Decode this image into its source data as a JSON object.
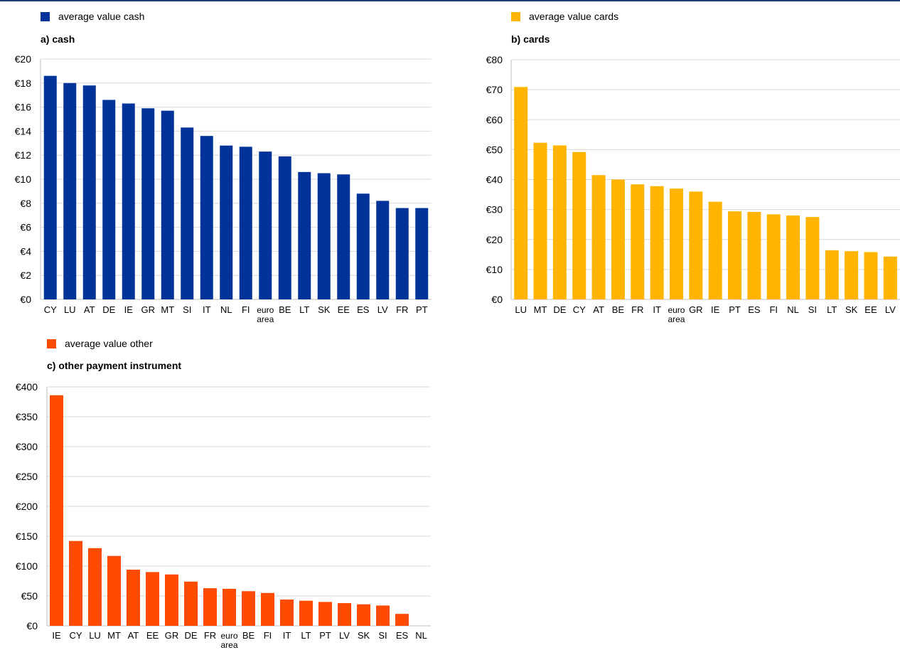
{
  "chart_data": [
    {
      "type": "bar",
      "title": "a) cash",
      "legend": "average value cash",
      "color": "#003399",
      "ylim": [
        0,
        20
      ],
      "yticks": [
        0,
        2,
        4,
        6,
        8,
        10,
        12,
        14,
        16,
        18,
        20
      ],
      "tick_labels": [
        "€0",
        "€2",
        "€4",
        "€6",
        "€8",
        "€10",
        "€12",
        "€14",
        "€16",
        "€18",
        "€20"
      ],
      "categories": [
        "CY",
        "LU",
        "AT",
        "DE",
        "IE",
        "GR",
        "MT",
        "SI",
        "IT",
        "NL",
        "FI",
        "euro area",
        "BE",
        "LT",
        "SK",
        "EE",
        "ES",
        "LV",
        "FR",
        "PT"
      ],
      "values": [
        18.6,
        18.0,
        17.8,
        16.6,
        16.3,
        15.9,
        15.7,
        14.3,
        13.6,
        12.8,
        12.7,
        12.3,
        11.9,
        10.6,
        10.5,
        10.4,
        8.8,
        8.2,
        7.6,
        7.6
      ]
    },
    {
      "type": "bar",
      "title": "b) cards",
      "legend": "average value cards",
      "color": "#ffb400",
      "ylim": [
        0,
        80
      ],
      "yticks": [
        0,
        10,
        20,
        30,
        40,
        50,
        60,
        70,
        80
      ],
      "tick_labels": [
        "€0",
        "€10",
        "€20",
        "€30",
        "€40",
        "€50",
        "€60",
        "€70",
        "€80"
      ],
      "categories": [
        "LU",
        "MT",
        "DE",
        "CY",
        "AT",
        "BE",
        "FR",
        "IT",
        "euro area",
        "GR",
        "IE",
        "PT",
        "ES",
        "FI",
        "NL",
        "SI",
        "LT",
        "SK",
        "EE",
        "LV"
      ],
      "values": [
        70.9,
        52.3,
        51.4,
        49.2,
        41.5,
        40.0,
        38.4,
        37.8,
        37.0,
        36.0,
        32.6,
        29.4,
        29.2,
        28.4,
        28.0,
        27.5,
        16.4,
        16.1,
        15.8,
        14.3
      ]
    },
    {
      "type": "bar",
      "title": "c) other payment instrument",
      "legend": "average value other",
      "color": "#ff4b00",
      "ylim": [
        0,
        400
      ],
      "yticks": [
        0,
        50,
        100,
        150,
        200,
        250,
        300,
        350,
        400
      ],
      "tick_labels": [
        "€0",
        "€50",
        "€100",
        "€150",
        "€200",
        "€250",
        "€300",
        "€350",
        "€400"
      ],
      "categories": [
        "IE",
        "CY",
        "LU",
        "MT",
        "AT",
        "EE",
        "GR",
        "DE",
        "FR",
        "euro area",
        "BE",
        "FI",
        "IT",
        "LT",
        "PT",
        "LV",
        "SK",
        "SI",
        "ES",
        "NL"
      ],
      "values": [
        386,
        142,
        130,
        117,
        94,
        90,
        86,
        74,
        63,
        62,
        58,
        55,
        44,
        42,
        40,
        38,
        36,
        34,
        20,
        0
      ]
    }
  ]
}
